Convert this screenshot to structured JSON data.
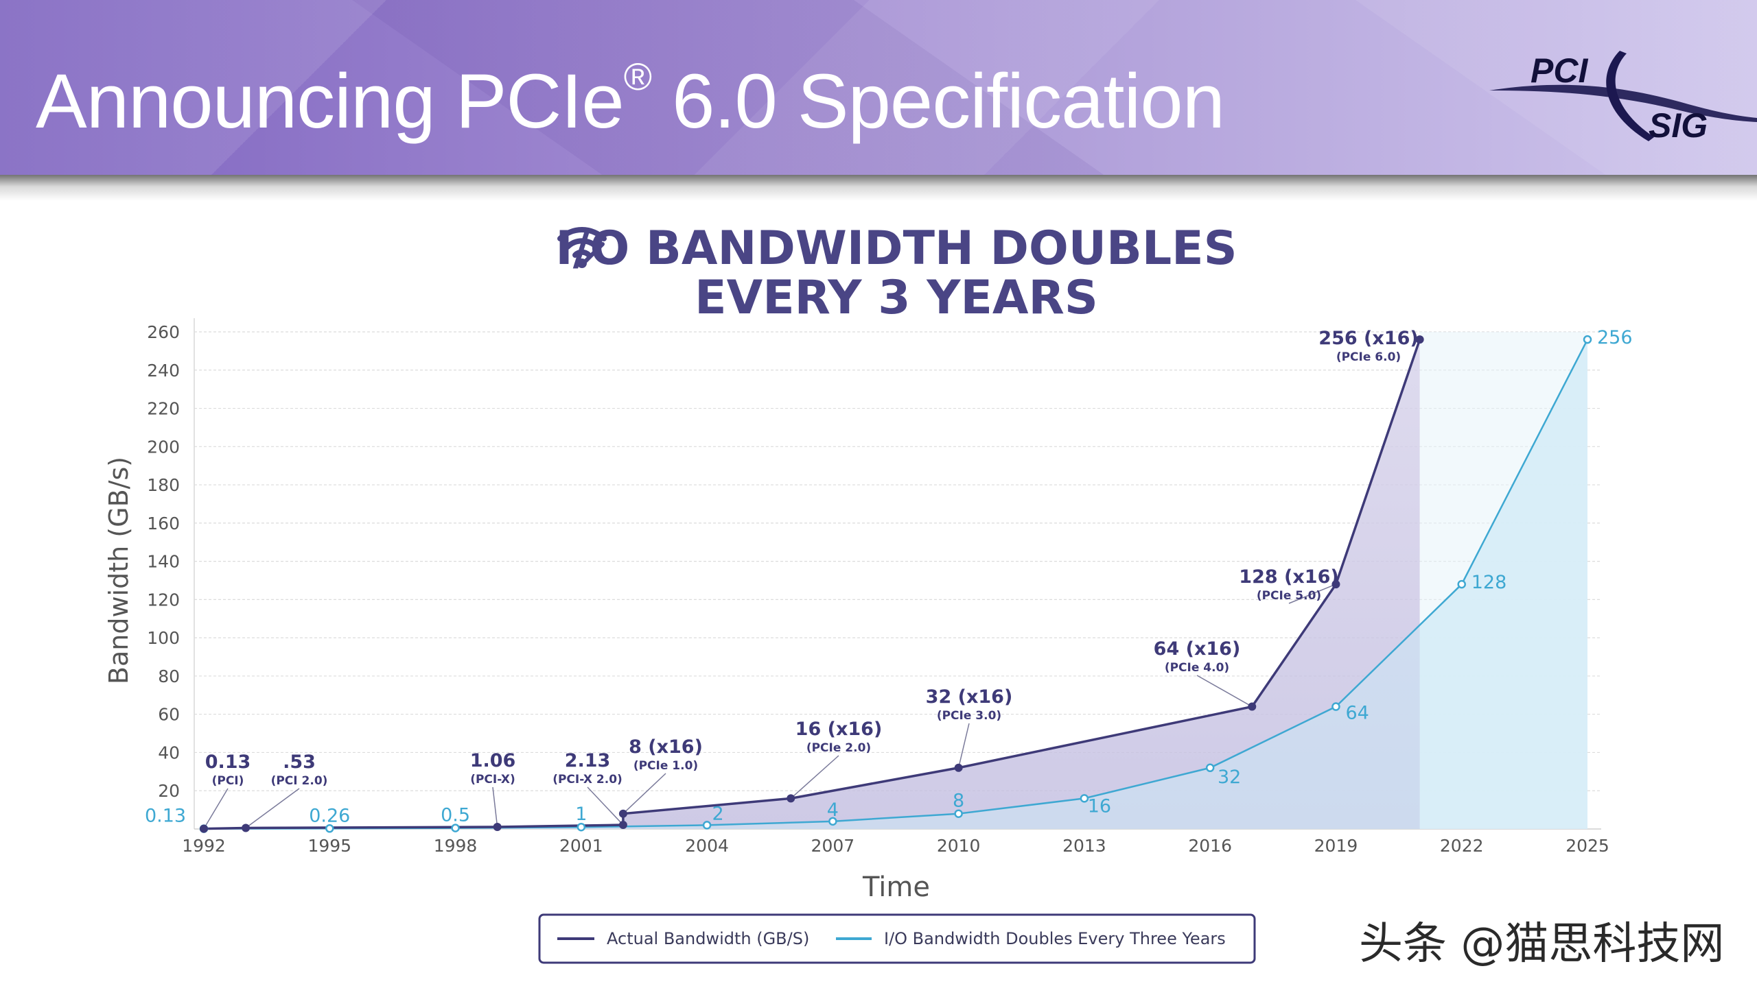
{
  "header": {
    "title_main": "Announcing PCIe",
    "title_reg": "®",
    "title_tail": " 6.0 Specification",
    "logo_top": "PCI",
    "logo_bottom": "SIG"
  },
  "colors": {
    "actual": "#3e3a78",
    "doubling": "#3ea8d2",
    "title_text": "#4a4585",
    "axis_text": "#555555"
  },
  "icons": {
    "title_icon": "wifi-signal-icon"
  },
  "chart_data": {
    "type": "area",
    "title_line1": "I/O BANDWIDTH DOUBLES",
    "title_line2": "EVERY 3 YEARS",
    "xlabel": "Time",
    "ylabel": "Bandwidth (GB/s)",
    "xlim": [
      1992,
      2025
    ],
    "ylim": [
      0,
      260
    ],
    "x_ticks": [
      "1992",
      "1995",
      "1998",
      "2001",
      "2004",
      "2007",
      "2010",
      "2013",
      "2016",
      "2019",
      "2022",
      "2025"
    ],
    "y_ticks": [
      "20",
      "40",
      "60",
      "80",
      "100",
      "120",
      "140",
      "160",
      "180",
      "200",
      "220",
      "240",
      "260"
    ],
    "grid": true,
    "legend_position": "bottom-center",
    "series": [
      {
        "name": "Actual Bandwidth (GB/S)",
        "color": "#3e3a78",
        "points": [
          {
            "x": 1992,
            "y": 0.13
          },
          {
            "x": 1993,
            "y": 0.53
          },
          {
            "x": 1999,
            "y": 1.06
          },
          {
            "x": 2002,
            "y": 2.13
          },
          {
            "x": 2002,
            "y": 8
          },
          {
            "x": 2006,
            "y": 16
          },
          {
            "x": 2010,
            "y": 32
          },
          {
            "x": 2017,
            "y": 64
          },
          {
            "x": 2019,
            "y": 128
          },
          {
            "x": 2021,
            "y": 256
          }
        ]
      },
      {
        "name": "I/O Bandwidth Doubles Every Three Years",
        "color": "#3ea8d2",
        "points": [
          {
            "x": 1992,
            "y": 0.13
          },
          {
            "x": 1995,
            "y": 0.26
          },
          {
            "x": 1998,
            "y": 0.5
          },
          {
            "x": 2001,
            "y": 1
          },
          {
            "x": 2004,
            "y": 2
          },
          {
            "x": 2007,
            "y": 4
          },
          {
            "x": 2010,
            "y": 8
          },
          {
            "x": 2013,
            "y": 16
          },
          {
            "x": 2016,
            "y": 32
          },
          {
            "x": 2019,
            "y": 64
          },
          {
            "x": 2022,
            "y": 128
          },
          {
            "x": 2025,
            "y": 256
          }
        ]
      }
    ],
    "annotations_actual": [
      {
        "x": 1992,
        "y": 0.13,
        "value": "0.13",
        "sub": "(PCI)"
      },
      {
        "x": 1993,
        "y": 0.53,
        "value": ".53",
        "sub": "(PCI 2.0)"
      },
      {
        "x": 1999,
        "y": 1.06,
        "value": "1.06",
        "sub": "(PCI-X)"
      },
      {
        "x": 2002,
        "y": 2.13,
        "value": "2.13",
        "sub": "(PCI-X 2.0)"
      },
      {
        "x": 2002,
        "y": 8,
        "value": "8 (x16)",
        "sub": "(PCIe 1.0)"
      },
      {
        "x": 2006,
        "y": 16,
        "value": "16 (x16)",
        "sub": "(PCIe 2.0)"
      },
      {
        "x": 2010,
        "y": 32,
        "value": "32 (x16)",
        "sub": "(PCIe 3.0)"
      },
      {
        "x": 2017,
        "y": 64,
        "value": "64 (x16)",
        "sub": "(PCIe 4.0)"
      },
      {
        "x": 2019,
        "y": 128,
        "value": "128 (x16)",
        "sub": "(PCIe 5.0)"
      },
      {
        "x": 2021,
        "y": 256,
        "value": "256 (x16)",
        "sub": "(PCIe 6.0)"
      }
    ],
    "annotations_doubling": [
      {
        "x": 1992,
        "y": 0.13,
        "value": "0.13"
      },
      {
        "x": 1995,
        "y": 0.26,
        "value": "0.26"
      },
      {
        "x": 1998,
        "y": 0.5,
        "value": "0.5"
      },
      {
        "x": 2001,
        "y": 1,
        "value": "1"
      },
      {
        "x": 2004,
        "y": 2,
        "value": "2"
      },
      {
        "x": 2007,
        "y": 4,
        "value": "4"
      },
      {
        "x": 2010,
        "y": 8,
        "value": "8"
      },
      {
        "x": 2013,
        "y": 16,
        "value": "16"
      },
      {
        "x": 2016,
        "y": 32,
        "value": "32"
      },
      {
        "x": 2019,
        "y": 64,
        "value": "64"
      },
      {
        "x": 2022,
        "y": 128,
        "value": "128"
      },
      {
        "x": 2025,
        "y": 256,
        "value": "256"
      }
    ]
  },
  "watermark": "头条 @猫思科技网"
}
